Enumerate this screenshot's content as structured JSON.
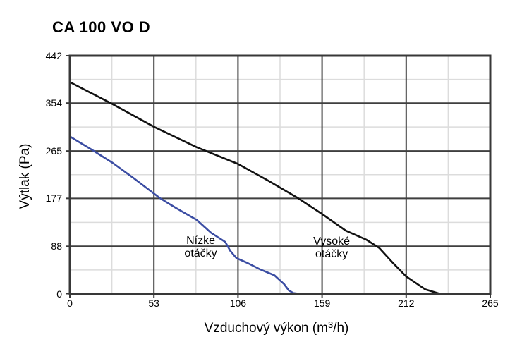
{
  "title": "CA 100 VO D",
  "colors": {
    "background": "#ffffff",
    "frame": "#383838",
    "major_grid": "#3f3f3f",
    "minor_grid": "#dcdcdc",
    "text": "#000000",
    "curve_high_speed": "#111111",
    "curve_low_speed": "#3B4DA3"
  },
  "chart_data": {
    "type": "line",
    "title": "CA 100 VO D",
    "xlabel": "Vzduchový výkon (m3/h)",
    "xlabel_parts": {
      "prefix": "Vzduchový výkon (m",
      "sup": "3",
      "suffix": "/h)"
    },
    "ylabel": "Výtlak (Pa)",
    "xlim": [
      0,
      265
    ],
    "ylim": [
      0,
      442
    ],
    "x_ticks": [
      0,
      53,
      106,
      159,
      212,
      265
    ],
    "y_ticks": [
      0,
      88,
      177,
      265,
      354,
      442
    ],
    "grid": {
      "major": true,
      "minor": true,
      "minor_at_midpoints": true
    },
    "legend_position": "none",
    "series": [
      {
        "name": "Vysoké otáčky",
        "color": "#111111",
        "points": [
          [
            0,
            393
          ],
          [
            27,
            352
          ],
          [
            53,
            310
          ],
          [
            80,
            272
          ],
          [
            106,
            241
          ],
          [
            125,
            210
          ],
          [
            144,
            177
          ],
          [
            159,
            148
          ],
          [
            174,
            117
          ],
          [
            187,
            100
          ],
          [
            195,
            85
          ],
          [
            204,
            56
          ],
          [
            212,
            32
          ],
          [
            224,
            8
          ],
          [
            233,
            0
          ]
        ]
      },
      {
        "name": "Nízke otáčky",
        "color": "#3B4DA3",
        "points": [
          [
            0,
            292
          ],
          [
            13,
            269
          ],
          [
            27,
            243
          ],
          [
            40,
            215
          ],
          [
            53,
            186
          ],
          [
            57,
            177
          ],
          [
            67,
            159
          ],
          [
            80,
            137
          ],
          [
            89,
            113
          ],
          [
            98,
            96
          ],
          [
            101,
            80
          ],
          [
            105,
            66
          ],
          [
            112,
            57
          ],
          [
            120,
            45
          ],
          [
            129,
            34
          ],
          [
            135,
            18
          ],
          [
            138,
            6
          ],
          [
            141,
            1
          ],
          [
            144,
            0
          ]
        ]
      }
    ],
    "annotations": [
      {
        "text": "Nízke\notáčky",
        "x": 82.5,
        "y": 86,
        "series": "low-speed"
      },
      {
        "text": "Vysoké\notáčky",
        "x": 165,
        "y": 85,
        "series": "high-speed"
      }
    ]
  }
}
